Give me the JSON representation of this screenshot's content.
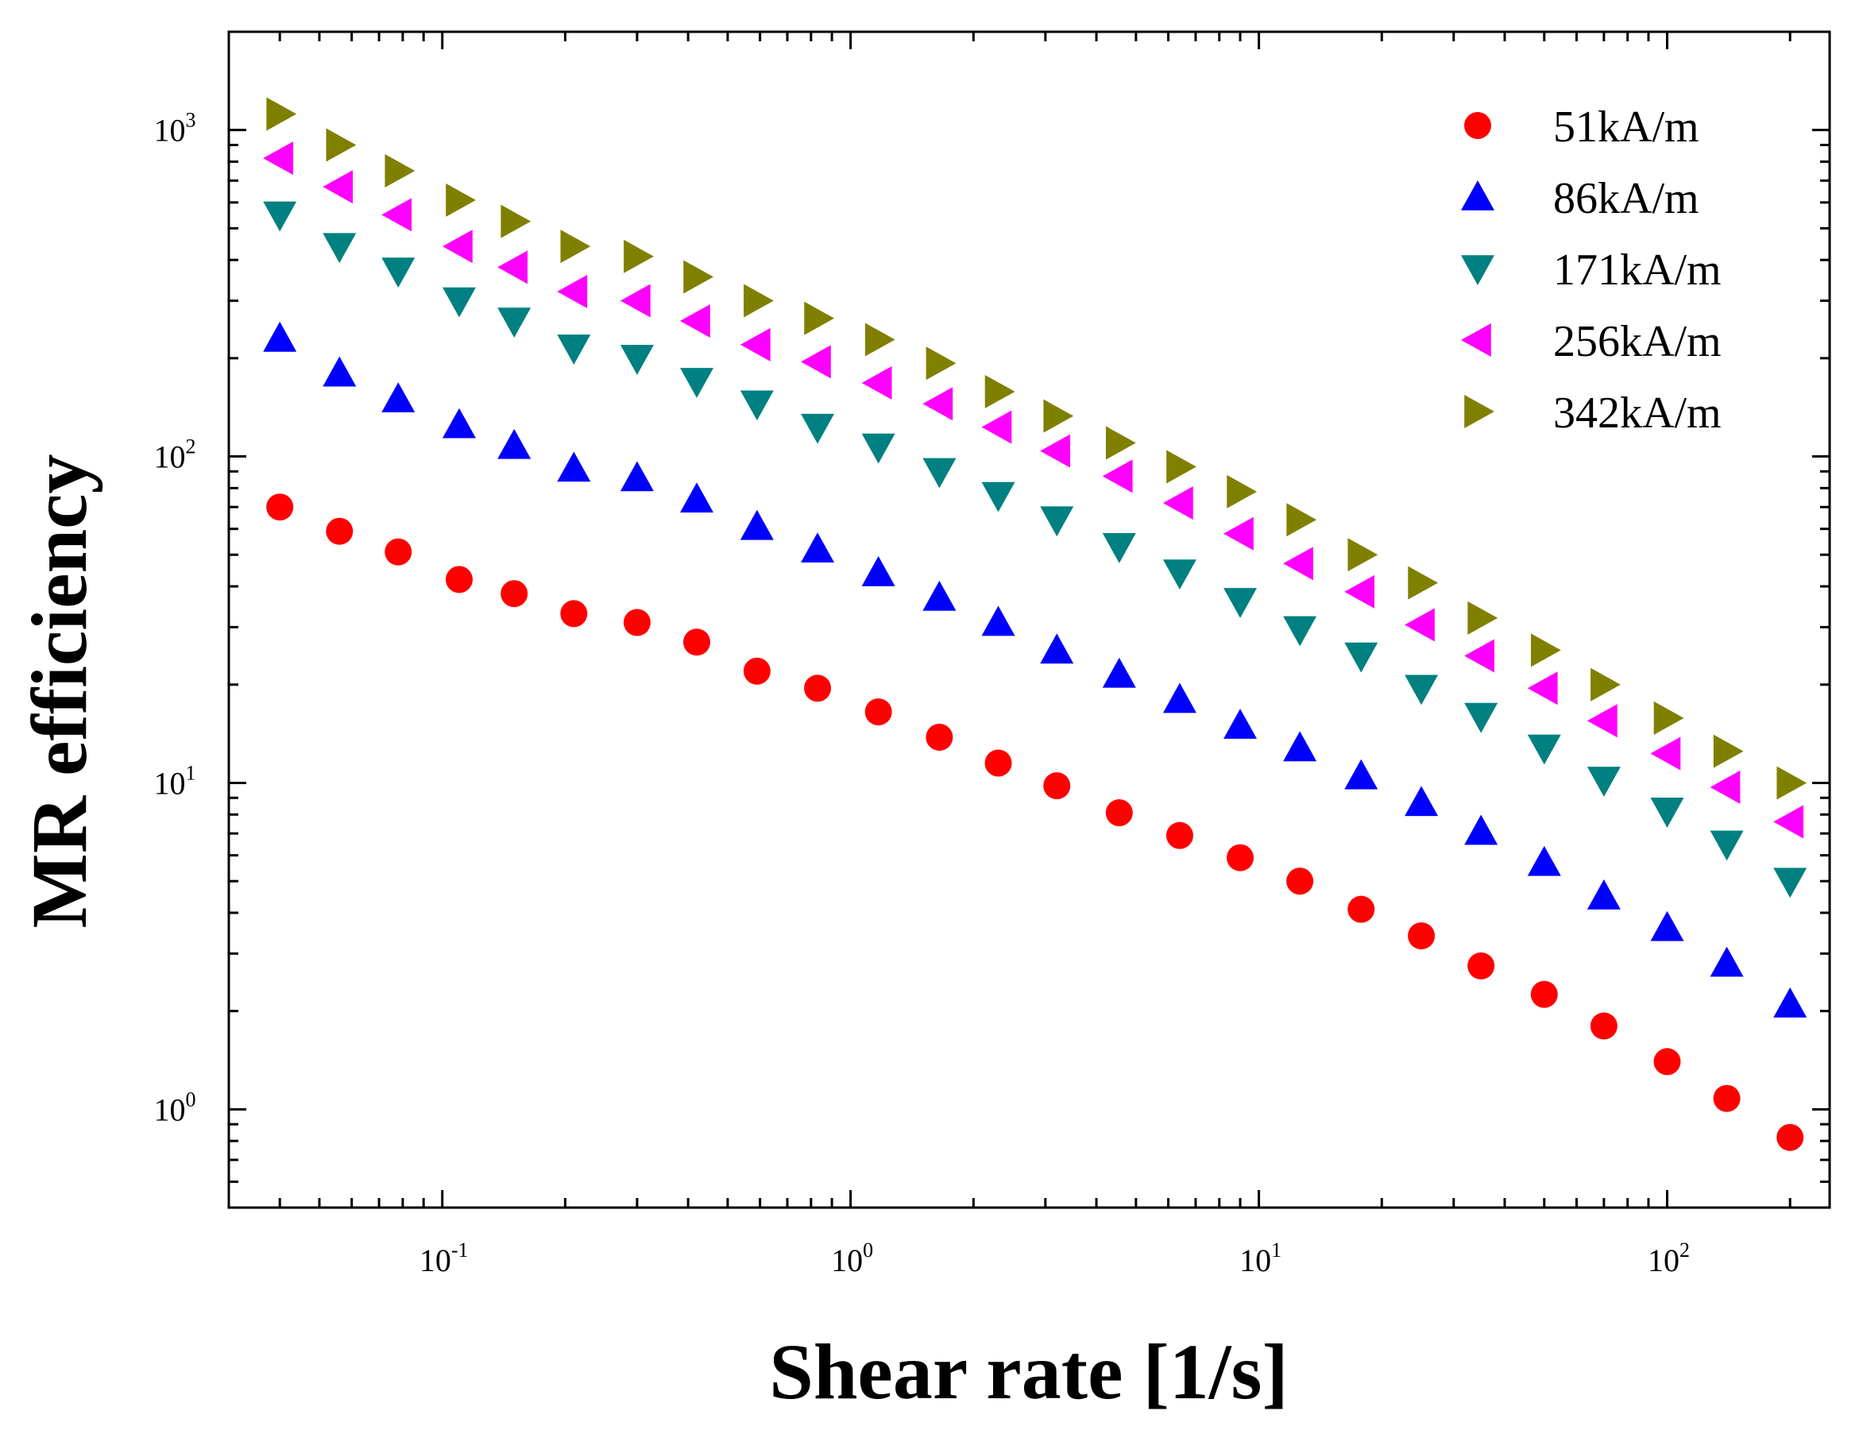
{
  "chart_data": {
    "type": "scatter",
    "xscale": "log",
    "yscale": "log",
    "xlim": [
      0.03,
      250
    ],
    "ylim": [
      0.5,
      2000
    ],
    "xlabel": "Shear rate [1/s]",
    "ylabel": "MR efficiency",
    "xticks": [
      {
        "value": 0.1,
        "base": "10",
        "exp": "-1"
      },
      {
        "value": 1,
        "base": "10",
        "exp": "0"
      },
      {
        "value": 10,
        "base": "10",
        "exp": "1"
      },
      {
        "value": 100,
        "base": "10",
        "exp": "2"
      }
    ],
    "yticks": [
      {
        "value": 1,
        "base": "10",
        "exp": "0"
      },
      {
        "value": 10,
        "base": "10",
        "exp": "1"
      },
      {
        "value": 100,
        "base": "10",
        "exp": "2"
      },
      {
        "value": 1000,
        "base": "10",
        "exp": "3"
      }
    ],
    "legend_position": "top-right",
    "x": [
      0.04,
      0.056,
      0.078,
      0.11,
      0.15,
      0.21,
      0.3,
      0.42,
      0.59,
      0.83,
      1.17,
      1.65,
      2.3,
      3.2,
      4.55,
      6.4,
      9,
      12.6,
      17.8,
      25,
      35,
      50,
      70,
      100,
      140,
      200
    ],
    "series": [
      {
        "name": "51kA/m",
        "marker": "circle",
        "color": "#ff0000",
        "values": [
          70,
          59,
          51,
          42,
          38,
          33,
          31,
          27,
          22,
          19.5,
          16.5,
          13.8,
          11.5,
          9.8,
          8.1,
          6.9,
          5.9,
          5,
          4.1,
          3.4,
          2.75,
          2.25,
          1.8,
          1.4,
          1.08,
          0.82
        ]
      },
      {
        "name": "86kA/m",
        "marker": "triangle-up",
        "color": "#0000ff",
        "values": [
          230,
          180,
          150,
          125,
          108,
          92,
          86,
          74,
          61,
          52,
          44,
          37,
          31,
          25.5,
          21.5,
          18,
          15,
          12.8,
          10.5,
          8.7,
          7.1,
          5.7,
          4.5,
          3.6,
          2.8,
          2.1
        ]
      },
      {
        "name": "171kA/m",
        "marker": "triangle-down",
        "color": "#008080",
        "values": [
          550,
          440,
          370,
          300,
          260,
          215,
          200,
          170,
          145,
          123,
          107,
          90,
          76,
          64,
          53,
          44,
          36,
          29.5,
          24.5,
          19.5,
          16,
          12.8,
          10.2,
          8.2,
          6.5,
          5
        ]
      },
      {
        "name": "256kA/m",
        "marker": "triangle-left",
        "color": "#ff00ff",
        "values": [
          820,
          670,
          550,
          440,
          380,
          320,
          300,
          260,
          220,
          195,
          168,
          145,
          123,
          104,
          87,
          72,
          58,
          47,
          38.5,
          30.5,
          24.5,
          19.5,
          15.5,
          12.3,
          9.7,
          7.6
        ]
      },
      {
        "name": "342kA/m",
        "marker": "triangle-right",
        "color": "#808000",
        "values": [
          1120,
          900,
          750,
          610,
          525,
          440,
          410,
          355,
          300,
          265,
          228,
          193,
          158,
          133,
          110,
          93,
          78,
          64,
          50,
          41,
          32,
          25.5,
          20,
          15.8,
          12.5,
          10
        ]
      }
    ]
  }
}
